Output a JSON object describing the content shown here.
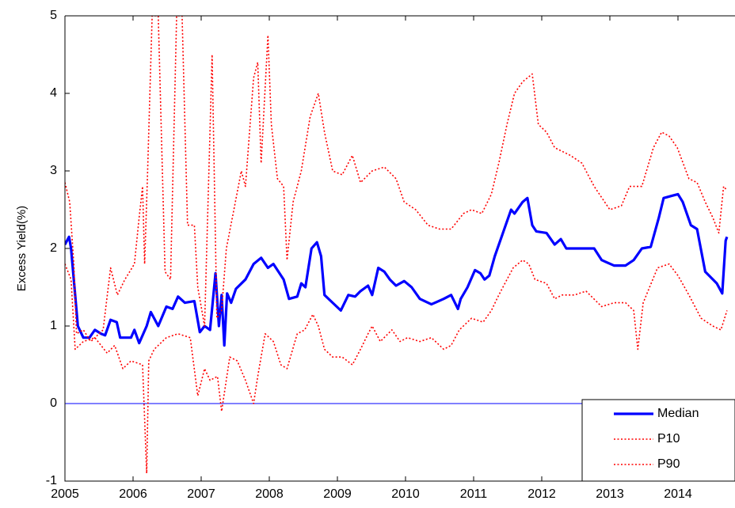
{
  "chart_data": {
    "type": "line",
    "y_label": "Excess Yield(%)",
    "xlim": [
      2005,
      2014.84
    ],
    "ylim": [
      -1,
      5
    ],
    "xticks": [
      2005,
      2006,
      2007,
      2008,
      2009,
      2010,
      2011,
      2012,
      2013,
      2014
    ],
    "yticks": [
      -1,
      0,
      1,
      2,
      3,
      4,
      5
    ],
    "hline": {
      "value": 0,
      "color": "#0000ff"
    },
    "legend": "lower right",
    "series": [
      {
        "name": "Median",
        "color": "#0000ff",
        "style": "solid",
        "x": [
          2005.0,
          2005.06,
          2005.09,
          2005.15,
          2005.19,
          2005.27,
          2005.36,
          2005.44,
          2005.53,
          2005.59,
          2005.67,
          2005.76,
          2005.81,
          2005.97,
          2006.02,
          2006.09,
          2006.2,
          2006.26,
          2006.37,
          2006.49,
          2006.58,
          2006.66,
          2006.76,
          2006.9,
          2006.98,
          2007.05,
          2007.13,
          2007.21,
          2007.26,
          2007.3,
          2007.34,
          2007.38,
          2007.44,
          2007.51,
          2007.65,
          2007.77,
          2007.88,
          2007.98,
          2008.06,
          2008.12,
          2008.21,
          2008.29,
          2008.41,
          2008.47,
          2008.53,
          2008.62,
          2008.7,
          2008.76,
          2008.81,
          2008.93,
          2009.05,
          2009.16,
          2009.26,
          2009.34,
          2009.45,
          2009.51,
          2009.6,
          2009.69,
          2009.77,
          2009.86,
          2009.98,
          2010.09,
          2010.21,
          2010.38,
          2010.56,
          2010.67,
          2010.77,
          2010.81,
          2010.91,
          2011.02,
          2011.1,
          2011.16,
          2011.23,
          2011.31,
          2011.43,
          2011.55,
          2011.6,
          2011.72,
          2011.79,
          2011.86,
          2011.92,
          2012.07,
          2012.19,
          2012.28,
          2012.36,
          2012.53,
          2012.77,
          2012.88,
          2013.06,
          2013.23,
          2013.35,
          2013.47,
          2013.6,
          2013.72,
          2013.79,
          2013.91,
          2014.0,
          2014.07,
          2014.19,
          2014.28,
          2014.4,
          2014.57,
          2014.65,
          2014.7,
          2014.72
        ],
        "values": [
          2.05,
          2.15,
          2.0,
          1.4,
          1.0,
          0.85,
          0.85,
          0.95,
          0.9,
          0.88,
          1.08,
          1.05,
          0.85,
          0.85,
          0.95,
          0.78,
          1.0,
          1.18,
          1.0,
          1.25,
          1.22,
          1.38,
          1.3,
          1.32,
          0.92,
          1.0,
          0.95,
          1.68,
          1.0,
          1.4,
          0.75,
          1.42,
          1.3,
          1.48,
          1.6,
          1.8,
          1.88,
          1.75,
          1.8,
          1.72,
          1.6,
          1.35,
          1.38,
          1.55,
          1.5,
          2.0,
          2.08,
          1.9,
          1.4,
          1.3,
          1.2,
          1.4,
          1.38,
          1.45,
          1.52,
          1.4,
          1.75,
          1.7,
          1.6,
          1.52,
          1.58,
          1.5,
          1.35,
          1.28,
          1.35,
          1.4,
          1.22,
          1.35,
          1.5,
          1.72,
          1.68,
          1.6,
          1.65,
          1.9,
          2.2,
          2.5,
          2.45,
          2.6,
          2.65,
          2.3,
          2.22,
          2.2,
          2.05,
          2.12,
          2.0,
          2.0,
          2.0,
          1.85,
          1.78,
          1.78,
          1.85,
          2.0,
          2.02,
          2.4,
          2.65,
          2.68,
          2.7,
          2.6,
          2.3,
          2.25,
          1.7,
          1.55,
          1.42,
          2.1,
          2.15
        ]
      },
      {
        "name": "P10",
        "color": "#ff0000",
        "style": "dotted",
        "x": [
          2005.0,
          2005.09,
          2005.15,
          2005.27,
          2005.44,
          2005.62,
          2005.73,
          2005.85,
          2005.97,
          2006.14,
          2006.2,
          2006.23,
          2006.31,
          2006.49,
          2006.66,
          2006.84,
          2006.95,
          2007.05,
          2007.13,
          2007.24,
          2007.3,
          2007.42,
          2007.53,
          2007.65,
          2007.77,
          2007.83,
          2007.94,
          2008.06,
          2008.17,
          2008.26,
          2008.41,
          2008.52,
          2008.64,
          2008.72,
          2008.81,
          2008.93,
          2009.07,
          2009.22,
          2009.34,
          2009.45,
          2009.51,
          2009.63,
          2009.8,
          2009.92,
          2010.03,
          2010.21,
          2010.38,
          2010.56,
          2010.67,
          2010.79,
          2010.97,
          2011.14,
          2011.26,
          2011.37,
          2011.49,
          2011.58,
          2011.72,
          2011.81,
          2011.9,
          2012.07,
          2012.19,
          2012.3,
          2012.48,
          2012.65,
          2012.88,
          2013.06,
          2013.23,
          2013.35,
          2013.41,
          2013.49,
          2013.7,
          2013.87,
          2014.0,
          2014.16,
          2014.34,
          2014.51,
          2014.63,
          2014.72
        ],
        "values": [
          1.8,
          1.6,
          0.7,
          0.8,
          0.85,
          0.65,
          0.75,
          0.45,
          0.55,
          0.5,
          -0.9,
          0.55,
          0.7,
          0.85,
          0.9,
          0.85,
          0.1,
          0.45,
          0.3,
          0.35,
          -0.1,
          0.6,
          0.55,
          0.3,
          0.0,
          0.35,
          0.9,
          0.8,
          0.5,
          0.45,
          0.9,
          0.95,
          1.15,
          1.0,
          0.7,
          0.6,
          0.6,
          0.5,
          0.7,
          0.9,
          1.0,
          0.8,
          0.95,
          0.8,
          0.85,
          0.8,
          0.85,
          0.7,
          0.75,
          0.95,
          1.1,
          1.05,
          1.2,
          1.4,
          1.6,
          1.75,
          1.85,
          1.8,
          1.6,
          1.55,
          1.35,
          1.4,
          1.4,
          1.45,
          1.25,
          1.3,
          1.3,
          1.2,
          0.7,
          1.3,
          1.75,
          1.8,
          1.65,
          1.4,
          1.1,
          1.0,
          0.95,
          1.2
        ]
      },
      {
        "name": "P90",
        "color": "#ff0000",
        "style": "dotted",
        "x": [
          2005.0,
          2005.07,
          2005.13,
          2005.17,
          2005.27,
          2005.38,
          2005.56,
          2005.67,
          2005.77,
          2005.88,
          2006.02,
          2006.09,
          2006.14,
          2006.17,
          2006.21,
          2006.28,
          2006.37,
          2006.47,
          2006.55,
          2006.64,
          2006.72,
          2006.8,
          2006.9,
          2006.95,
          2007.05,
          2007.12,
          2007.16,
          2007.23,
          2007.3,
          2007.37,
          2007.48,
          2007.59,
          2007.65,
          2007.77,
          2007.83,
          2007.88,
          2007.98,
          2008.03,
          2008.12,
          2008.21,
          2008.26,
          2008.35,
          2008.47,
          2008.6,
          2008.72,
          2008.81,
          2008.93,
          2009.07,
          2009.22,
          2009.34,
          2009.51,
          2009.69,
          2009.86,
          2009.98,
          2010.15,
          2010.33,
          2010.5,
          2010.67,
          2010.85,
          2010.97,
          2011.12,
          2011.26,
          2011.37,
          2011.49,
          2011.6,
          2011.72,
          2011.86,
          2011.95,
          2012.07,
          2012.19,
          2012.42,
          2012.59,
          2012.77,
          2013.0,
          2013.17,
          2013.29,
          2013.47,
          2013.64,
          2013.76,
          2013.87,
          2013.99,
          2014.16,
          2014.28,
          2014.4,
          2014.51,
          2014.6,
          2014.67,
          2014.72
        ],
        "values": [
          2.85,
          2.6,
          1.8,
          0.9,
          0.95,
          0.8,
          0.95,
          1.75,
          1.4,
          1.6,
          1.8,
          2.4,
          2.8,
          1.8,
          2.9,
          5.0,
          5.0,
          1.7,
          1.6,
          5.0,
          5.0,
          2.3,
          2.3,
          1.5,
          1.0,
          3.2,
          4.5,
          1.1,
          1.2,
          2.0,
          2.5,
          3.0,
          2.8,
          4.2,
          4.4,
          3.1,
          4.75,
          3.6,
          2.9,
          2.8,
          1.85,
          2.6,
          3.0,
          3.7,
          4.0,
          3.5,
          3.0,
          2.95,
          3.2,
          2.85,
          3.0,
          3.05,
          2.9,
          2.6,
          2.5,
          2.3,
          2.25,
          2.25,
          2.45,
          2.5,
          2.45,
          2.7,
          3.1,
          3.6,
          4.0,
          4.15,
          4.25,
          3.6,
          3.5,
          3.3,
          3.2,
          3.1,
          2.8,
          2.5,
          2.55,
          2.8,
          2.8,
          3.3,
          3.5,
          3.45,
          3.3,
          2.9,
          2.85,
          2.6,
          2.4,
          2.2,
          2.8,
          2.75
        ]
      }
    ]
  }
}
